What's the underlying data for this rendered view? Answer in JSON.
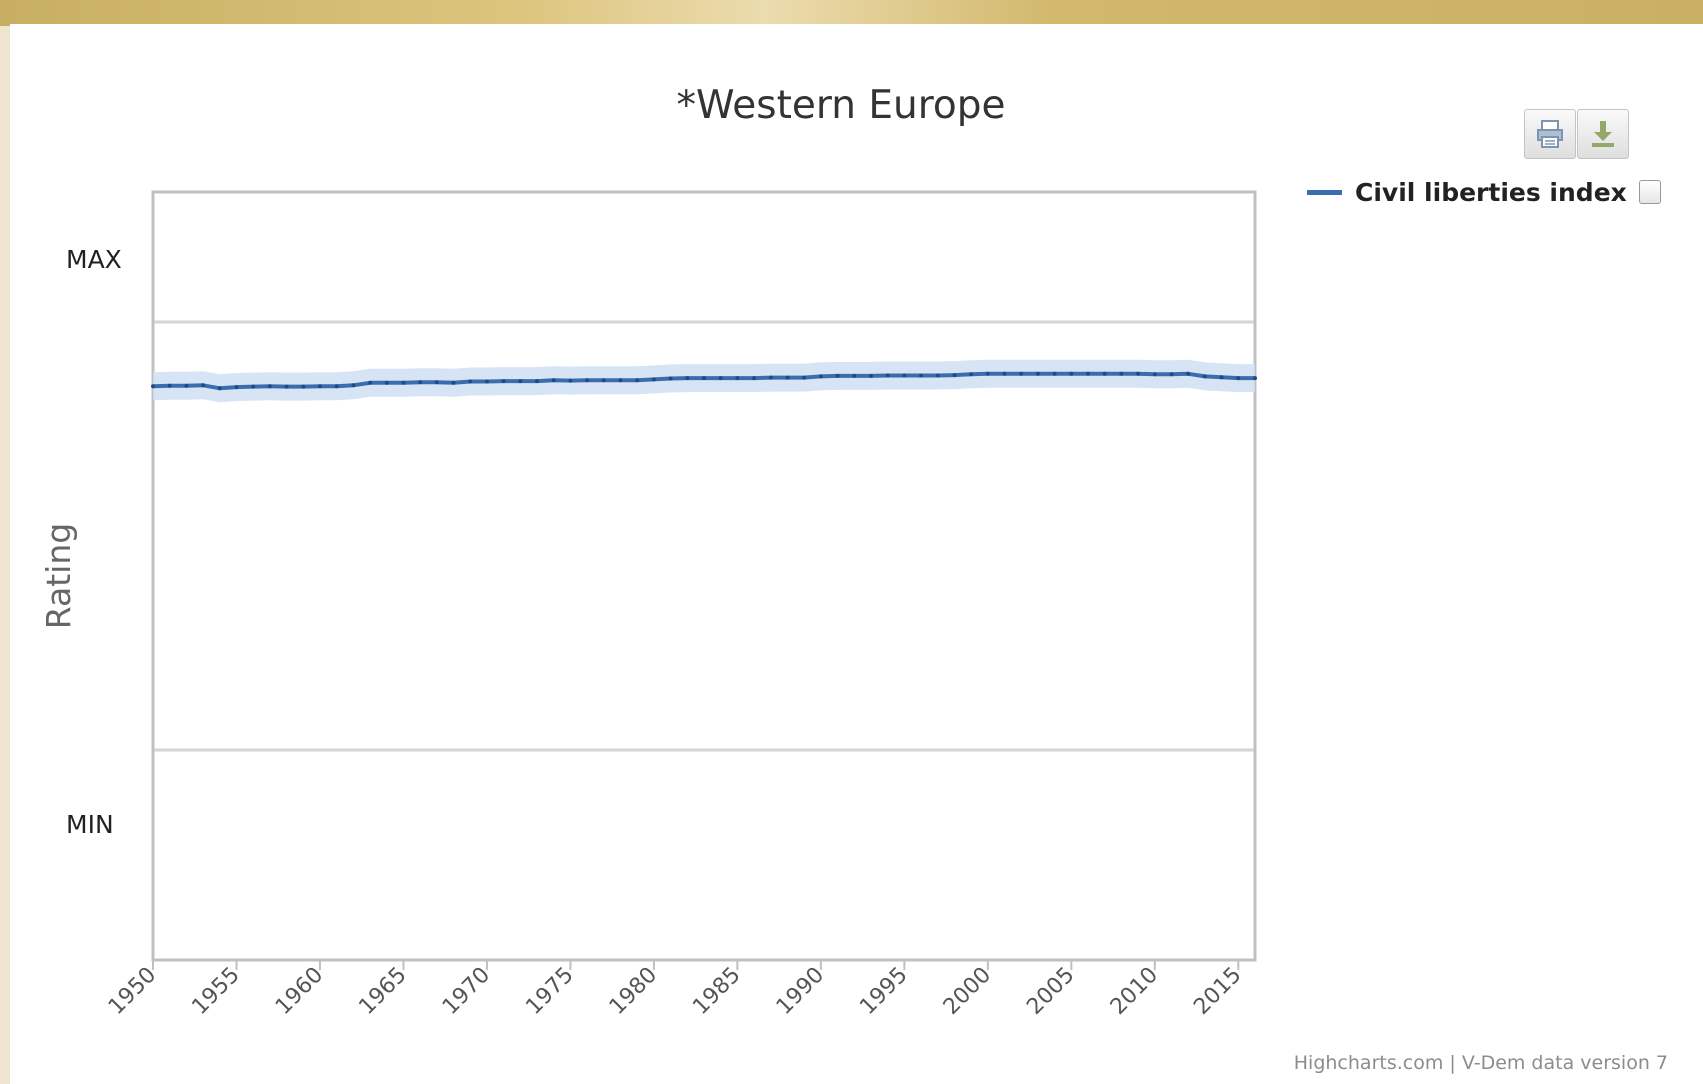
{
  "toolbar": {
    "print_icon": "printer-icon",
    "download_icon": "download-icon"
  },
  "credits": "Highcharts.com | V-Dem data version 7",
  "chart_data": {
    "type": "line",
    "title": "*Western Europe",
    "xlabel": "",
    "ylabel": "Rating",
    "y_tick_labels": [
      "MAX",
      "MIN"
    ],
    "y_range": [
      0,
      1
    ],
    "x_range": [
      1950,
      2016
    ],
    "xticks": [
      1950,
      1955,
      1960,
      1965,
      1970,
      1975,
      1980,
      1985,
      1990,
      1995,
      2000,
      2005,
      2010,
      2015
    ],
    "grid": true,
    "legend_position": "top-right",
    "colors": {
      "line": "#3a6db0",
      "band": "#cfdff5",
      "axis": "#c0c0c0",
      "grid": "#d4d4d4"
    },
    "series": [
      {
        "name": "Civil liberties index",
        "confidence_band": true,
        "x": [
          1950,
          1951,
          1952,
          1953,
          1954,
          1955,
          1956,
          1957,
          1958,
          1959,
          1960,
          1961,
          1962,
          1963,
          1964,
          1965,
          1966,
          1967,
          1968,
          1969,
          1970,
          1971,
          1972,
          1973,
          1974,
          1975,
          1976,
          1977,
          1978,
          1979,
          1980,
          1981,
          1982,
          1983,
          1984,
          1985,
          1986,
          1987,
          1988,
          1989,
          1990,
          1991,
          1992,
          1993,
          1994,
          1995,
          1996,
          1997,
          1998,
          1999,
          2000,
          2001,
          2002,
          2003,
          2004,
          2005,
          2006,
          2007,
          2008,
          2009,
          2010,
          2011,
          2012,
          2013,
          2014,
          2015,
          2016
        ],
        "y": [
          0.85,
          0.851,
          0.851,
          0.852,
          0.845,
          0.848,
          0.849,
          0.85,
          0.849,
          0.849,
          0.85,
          0.85,
          0.852,
          0.858,
          0.858,
          0.858,
          0.859,
          0.859,
          0.858,
          0.861,
          0.861,
          0.862,
          0.862,
          0.862,
          0.864,
          0.863,
          0.864,
          0.864,
          0.864,
          0.864,
          0.866,
          0.868,
          0.869,
          0.869,
          0.869,
          0.869,
          0.869,
          0.87,
          0.87,
          0.87,
          0.873,
          0.874,
          0.874,
          0.874,
          0.875,
          0.875,
          0.875,
          0.875,
          0.876,
          0.878,
          0.879,
          0.879,
          0.879,
          0.879,
          0.879,
          0.879,
          0.879,
          0.879,
          0.879,
          0.879,
          0.878,
          0.878,
          0.879,
          0.873,
          0.871,
          0.869,
          0.869
        ]
      }
    ]
  }
}
